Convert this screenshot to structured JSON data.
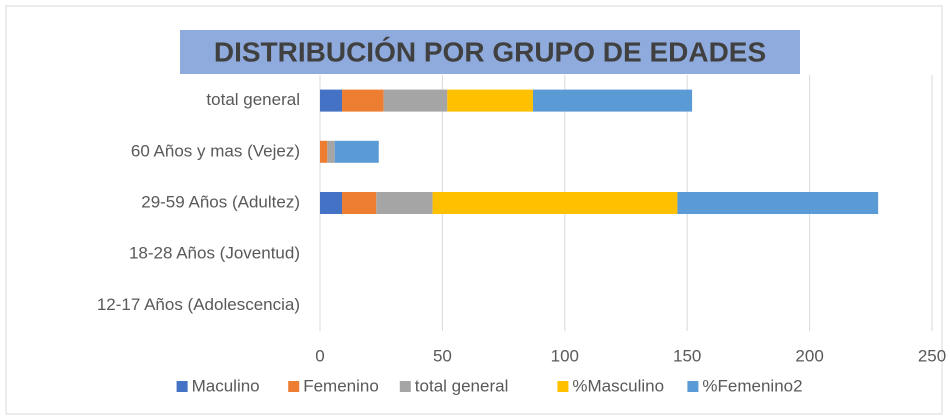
{
  "chart_data": {
    "type": "stacked_barh",
    "title": "DISTRIBUCIÓN POR GRUPO DE EDADES",
    "categories": [
      "total general",
      "60 Años y mas (Vejez)",
      "29-59 Años (Adultez)",
      "18-28 Años (Joventud)",
      "12-17 Años (Adolescencia)"
    ],
    "series": [
      {
        "name": "Maculino",
        "color": "#4472c4",
        "values": [
          9,
          0,
          9,
          0,
          0
        ]
      },
      {
        "name": "Femenino",
        "color": "#ed7d31",
        "values": [
          17,
          3,
          14,
          0,
          0
        ]
      },
      {
        "name": "total general",
        "color": "#a5a5a5",
        "values": [
          26,
          3,
          23,
          0,
          0
        ]
      },
      {
        "name": "%Masculino",
        "color": "#ffc000",
        "values": [
          35,
          0,
          100,
          0,
          0
        ]
      },
      {
        "name": "%Femenino2",
        "color": "#5b9bd5",
        "values": [
          65,
          18,
          82,
          0,
          0
        ]
      }
    ],
    "xlim": [
      0,
      250
    ],
    "xticks": [
      0,
      50,
      100,
      150,
      200,
      250
    ],
    "grid": true,
    "legend": "bottom"
  }
}
